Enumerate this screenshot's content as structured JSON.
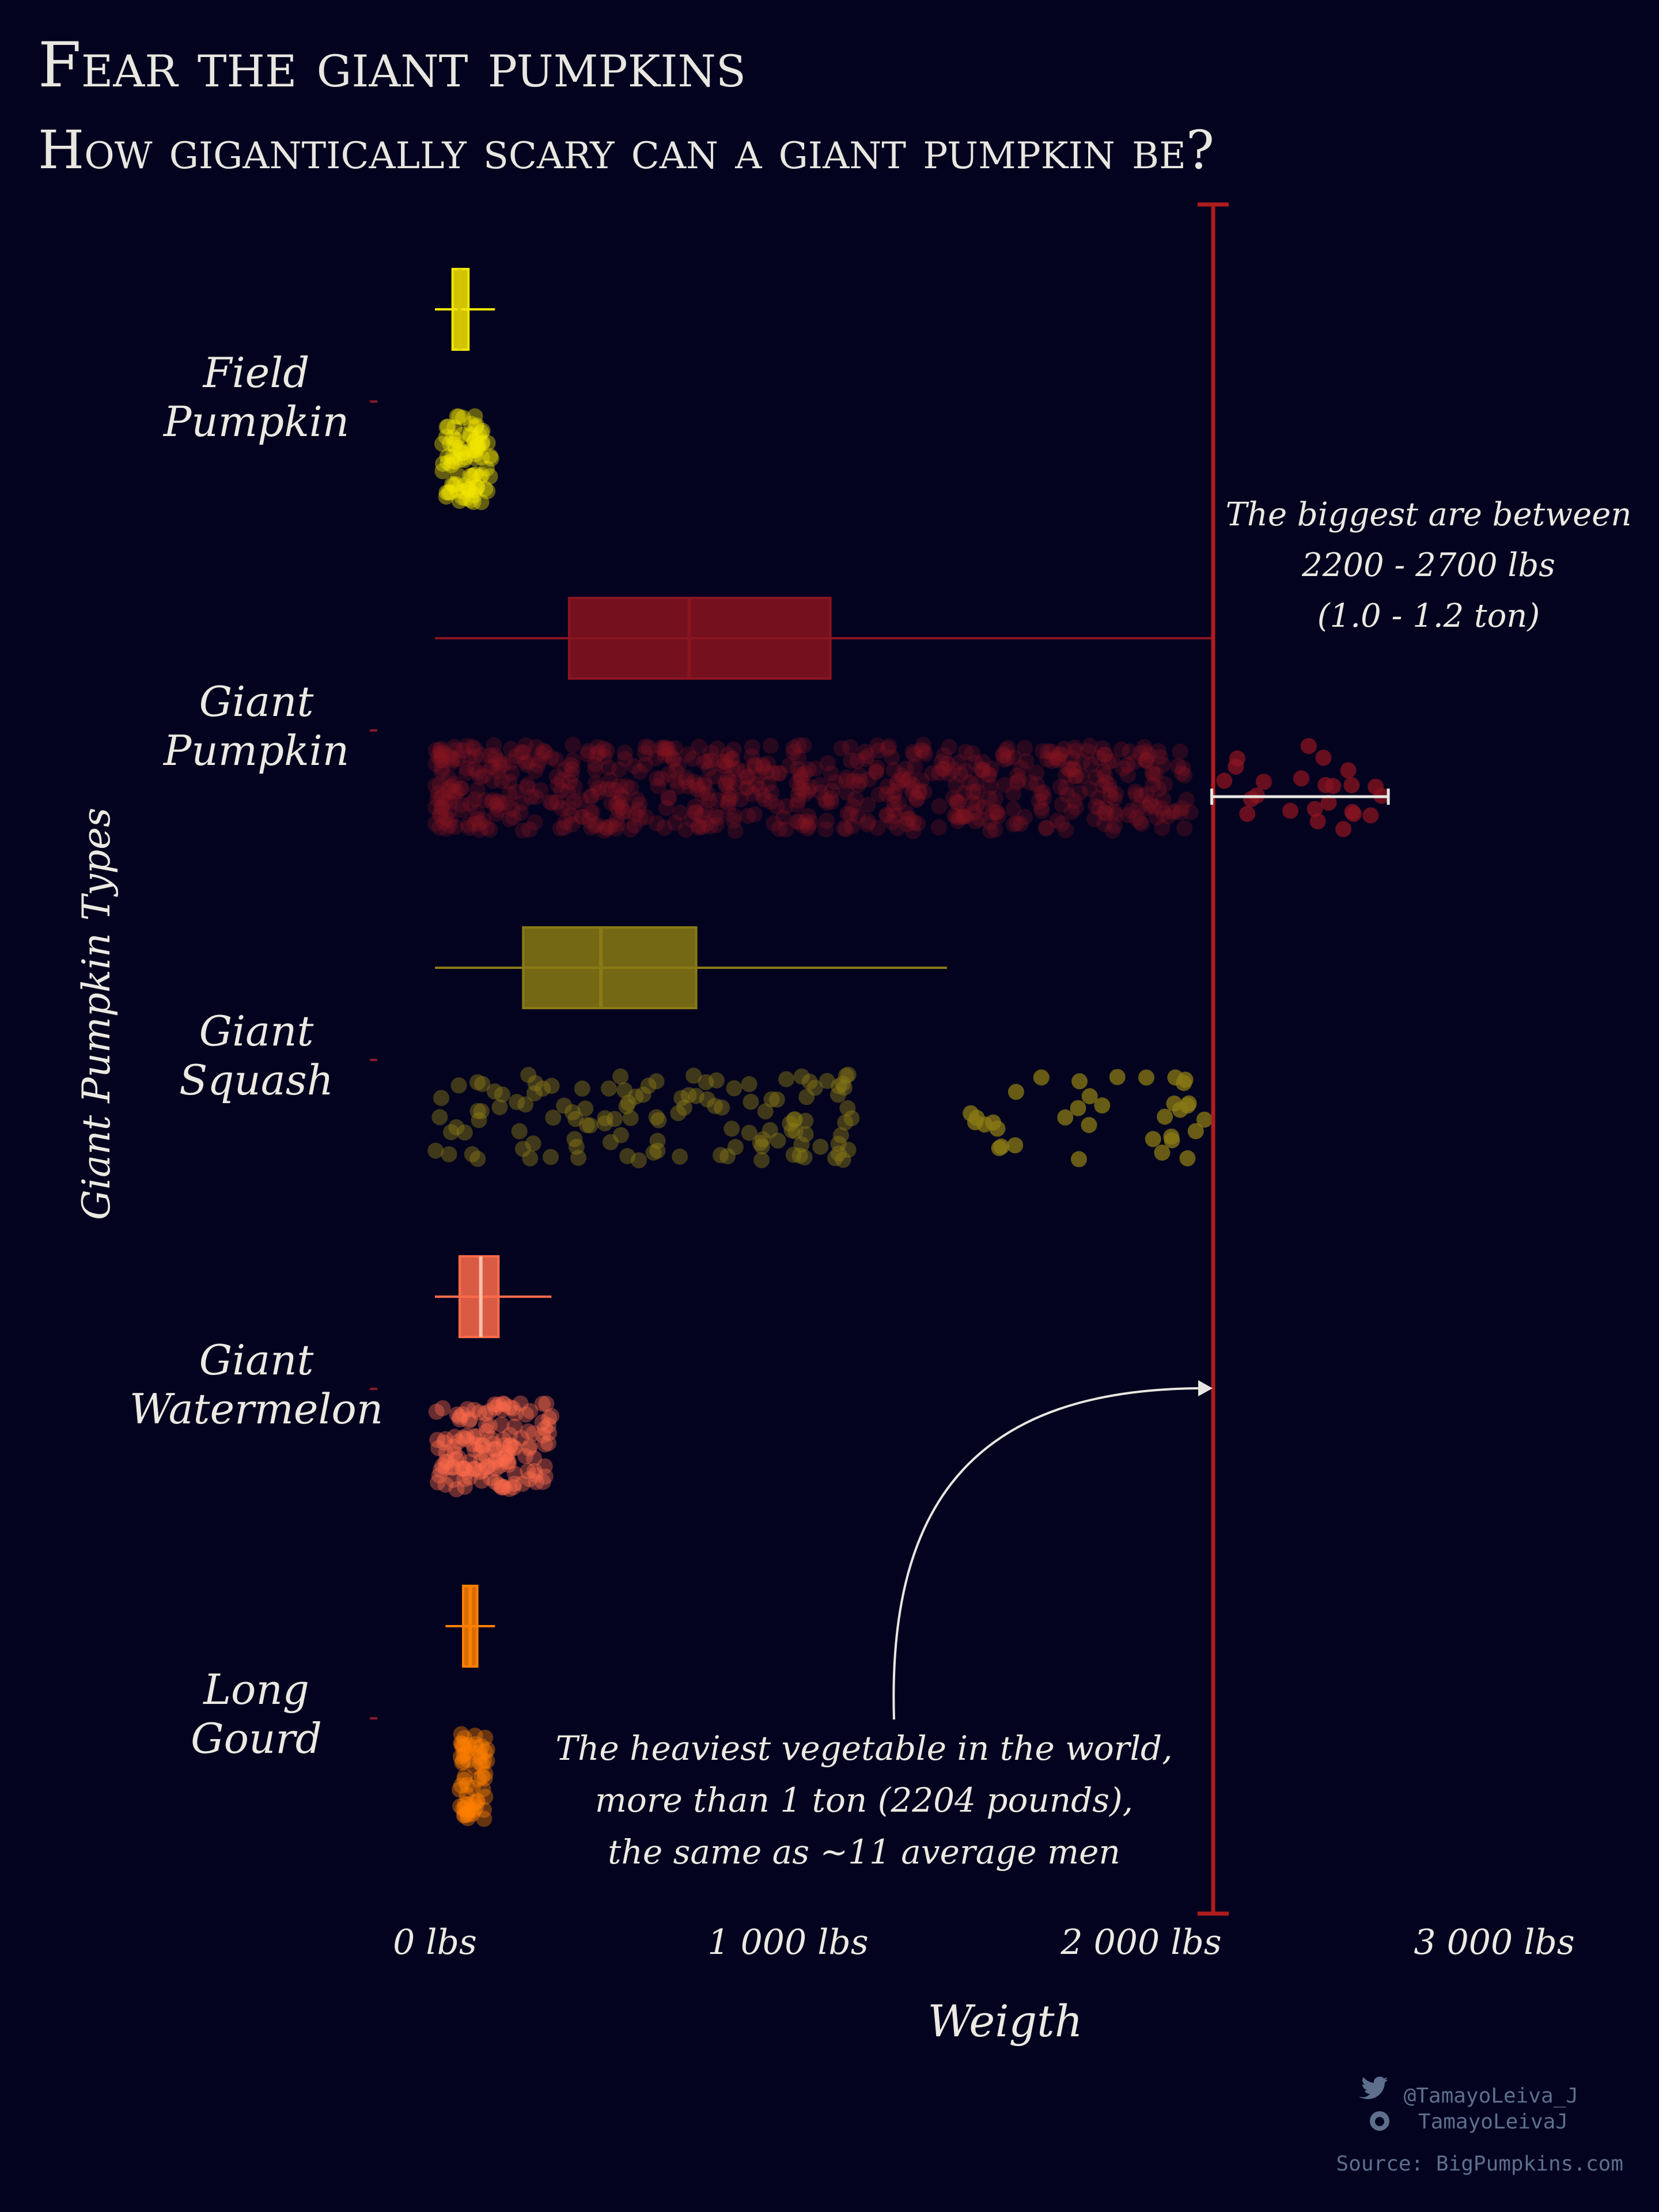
{
  "title": "Fear the giant pumpkins",
  "subtitle": "How gigantically scary can a giant pumpkin be?",
  "ylabel": "Giant Pumpkin Types",
  "xlabel": "Weigth",
  "credits": {
    "twitter": "@TamayoLeiva_J",
    "github": "TamayoLeivaJ",
    "source": "Source: BigPumpkins.com"
  },
  "annotations": {
    "biggest": [
      "The biggest are between",
      "2200 - 2700 lbs",
      "(1.0 - 1.2 ton)"
    ],
    "heaviest": [
      "The heaviest vegetable in the world,",
      "more than 1 ton (2204 pounds),",
      "the same as ~11 average men"
    ]
  },
  "colors": {
    "background": "#03031f",
    "reference_line": "#b01c1c",
    "field_pumpkin": "#f2e600",
    "giant_pumpkin": "#7a0f1a",
    "giant_squash": "#8a7a14",
    "giant_watermelon": "#ff6b4a",
    "long_gourd": "#ff8000"
  },
  "chart_data": {
    "type": "box+jitter",
    "xlabel": "Weigth",
    "ylabel": "Giant Pumpkin Types",
    "xlim": [
      0,
      3000
    ],
    "xticks": [
      0,
      1000,
      2000,
      3000
    ],
    "xtick_labels": [
      "0 lbs",
      "1 000 lbs",
      "2 000 lbs",
      "3 000 lbs"
    ],
    "reference_line": 2204,
    "highlight_range": [
      2200,
      2700
    ],
    "categories": [
      {
        "label": "Field Pumpkin",
        "name_lines": [
          "Field",
          "Pumpkin"
        ],
        "color": "#f2e600",
        "min": 0,
        "q1": 50,
        "median": 70,
        "q3": 95,
        "max": 170,
        "points_range": [
          0,
          220
        ]
      },
      {
        "label": "Giant Pumpkin",
        "name_lines": [
          "Giant",
          "Pumpkin"
        ],
        "color": "#8a1420",
        "min": 0,
        "q1": 380,
        "median": 720,
        "q3": 1120,
        "max": 2204,
        "points_range": [
          0,
          2700
        ]
      },
      {
        "label": "Giant Squash",
        "name_lines": [
          "Giant",
          "Squash"
        ],
        "color": "#8a7a14",
        "min": 0,
        "q1": 250,
        "median": 470,
        "q3": 740,
        "max": 1450,
        "points_range": [
          0,
          2200
        ]
      },
      {
        "label": "Giant Watermelon",
        "name_lines": [
          "Giant",
          "Watermelon"
        ],
        "color": "#ff6b4a",
        "min": 0,
        "q1": 70,
        "median": 130,
        "q3": 180,
        "max": 330,
        "points_range": [
          0,
          340
        ]
      },
      {
        "label": "Long Gourd",
        "name_lines": [
          "Long",
          "Gourd"
        ],
        "color": "#ff8000",
        "min": 30,
        "q1": 80,
        "median": 100,
        "q3": 120,
        "max": 170,
        "points_range": [
          60,
          160
        ]
      }
    ]
  }
}
